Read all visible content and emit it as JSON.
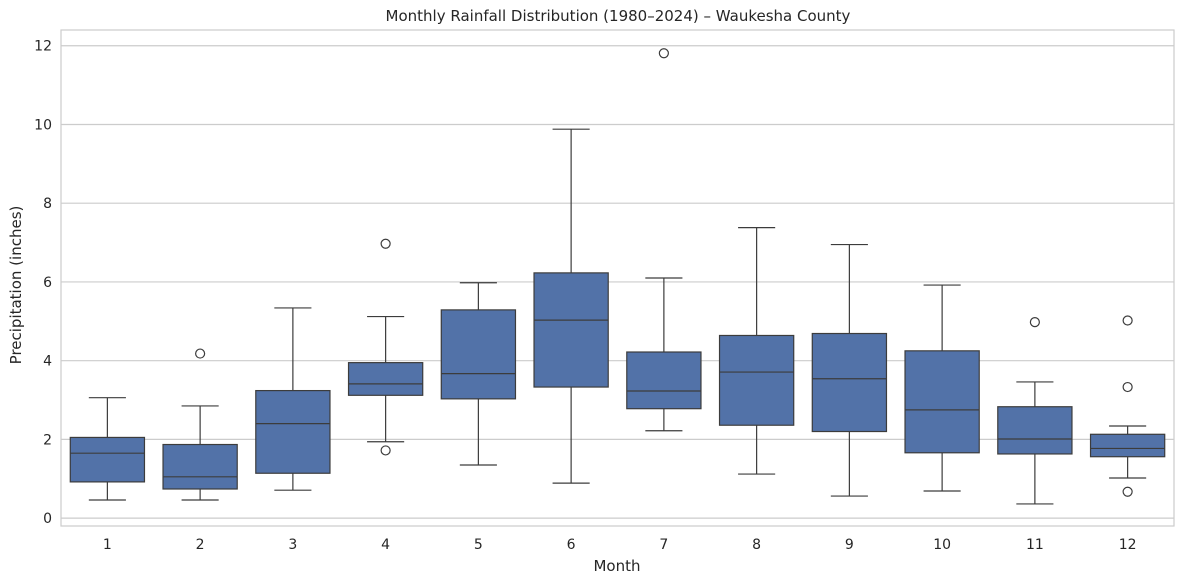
{
  "chart_data": {
    "type": "box",
    "title": "Monthly Rainfall Distribution (1980–2024) – Waukesha County",
    "xlabel": "Month",
    "ylabel": "Precipitation (inches)",
    "ylim": [
      -0.2,
      12.4
    ],
    "yticks": [
      0,
      2,
      4,
      6,
      8,
      10,
      12
    ],
    "grid": "horizontal",
    "box_color": "#5272a8",
    "line_color": "#3c3c3c",
    "categories": [
      "1",
      "2",
      "3",
      "4",
      "5",
      "6",
      "7",
      "8",
      "9",
      "10",
      "11",
      "12"
    ],
    "boxes": [
      {
        "month": "1",
        "whisker_low": 0.46,
        "q1": 0.92,
        "median": 1.65,
        "q3": 2.05,
        "whisker_high": 3.06,
        "outliers": []
      },
      {
        "month": "2",
        "whisker_low": 0.46,
        "q1": 0.74,
        "median": 1.05,
        "q3": 1.87,
        "whisker_high": 2.85,
        "outliers": [
          4.18
        ]
      },
      {
        "month": "3",
        "whisker_low": 0.71,
        "q1": 1.14,
        "median": 2.4,
        "q3": 3.24,
        "whisker_high": 5.34,
        "outliers": []
      },
      {
        "month": "4",
        "whisker_low": 1.94,
        "q1": 3.12,
        "median": 3.41,
        "q3": 3.95,
        "whisker_high": 5.12,
        "outliers": [
          1.72,
          6.97
        ]
      },
      {
        "month": "5",
        "whisker_low": 1.35,
        "q1": 3.03,
        "median": 3.67,
        "q3": 5.29,
        "whisker_high": 5.98,
        "outliers": []
      },
      {
        "month": "6",
        "whisker_low": 0.89,
        "q1": 3.33,
        "median": 5.03,
        "q3": 6.23,
        "whisker_high": 9.88,
        "outliers": []
      },
      {
        "month": "7",
        "whisker_low": 2.22,
        "q1": 2.78,
        "median": 3.23,
        "q3": 4.22,
        "whisker_high": 6.1,
        "outliers": [
          11.81
        ]
      },
      {
        "month": "8",
        "whisker_low": 1.12,
        "q1": 2.36,
        "median": 3.71,
        "q3": 4.64,
        "whisker_high": 7.38,
        "outliers": []
      },
      {
        "month": "9",
        "whisker_low": 0.56,
        "q1": 2.2,
        "median": 3.54,
        "q3": 4.69,
        "whisker_high": 6.95,
        "outliers": []
      },
      {
        "month": "10",
        "whisker_low": 0.69,
        "q1": 1.66,
        "median": 2.75,
        "q3": 4.25,
        "whisker_high": 5.92,
        "outliers": []
      },
      {
        "month": "11",
        "whisker_low": 0.36,
        "q1": 1.63,
        "median": 2.01,
        "q3": 2.83,
        "whisker_high": 3.46,
        "outliers": [
          4.98
        ]
      },
      {
        "month": "12",
        "whisker_low": 1.02,
        "q1": 1.56,
        "median": 1.77,
        "q3": 2.13,
        "whisker_high": 2.34,
        "outliers": [
          0.67,
          3.33,
          5.02
        ]
      }
    ]
  }
}
